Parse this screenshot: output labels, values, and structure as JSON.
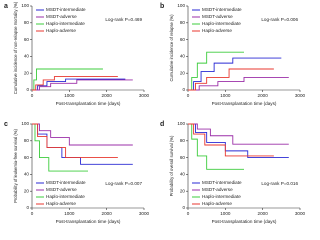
{
  "chart_data": [
    {
      "type": "step",
      "panel": "a",
      "ylabel": "Cumulative incidence of non-relapse mortality (%)",
      "xlabel": "Post-transplantation time (days)",
      "annotation": "Log-rank P=0.469",
      "legend": "upper left",
      "xlim": [
        0,
        3000
      ],
      "xticks": [
        0,
        1000,
        2000,
        3000
      ],
      "ylim": [
        0,
        100
      ],
      "yticks": [
        0,
        20,
        40,
        60,
        80,
        100
      ],
      "series": [
        {
          "name": "MSDT-intermediate",
          "color": "#2a2ad4",
          "x": [
            0,
            150,
            400,
            900,
            2500
          ],
          "values": [
            0,
            5,
            10,
            13,
            13
          ]
        },
        {
          "name": "MSDT-adverse",
          "color": "#9b2fa8",
          "x": [
            0,
            200,
            500,
            1200,
            2700
          ],
          "values": [
            0,
            4,
            8,
            12,
            12
          ]
        },
        {
          "name": "Haplo-intermediate",
          "color": "#3ccc3c",
          "x": [
            0,
            50,
            120,
            1900
          ],
          "values": [
            0,
            12,
            25,
            25
          ]
        },
        {
          "name": "Haplo-adverse",
          "color": "#e8372f",
          "x": [
            0,
            100,
            300,
            600,
            2300
          ],
          "values": [
            0,
            6,
            12,
            16,
            16
          ]
        }
      ]
    },
    {
      "type": "step",
      "panel": "b",
      "ylabel": "Cumulative incidence of relapse (%)",
      "xlabel": "Post-transplantation time (days)",
      "annotation": "Log-rank P=0.006",
      "legend": "upper left",
      "xlim": [
        0,
        3000
      ],
      "xticks": [
        0,
        1000,
        2000,
        3000
      ],
      "ylim": [
        0,
        100
      ],
      "yticks": [
        0,
        20,
        40,
        60,
        80,
        100
      ],
      "series": [
        {
          "name": "MSDT-intermediate",
          "color": "#2a2ad4",
          "x": [
            0,
            150,
            350,
            700,
            1200,
            2500
          ],
          "values": [
            0,
            10,
            22,
            32,
            38,
            38
          ]
        },
        {
          "name": "MSDT-adverse",
          "color": "#9b2fa8",
          "x": [
            0,
            300,
            800,
            1500,
            2700
          ],
          "values": [
            0,
            5,
            10,
            15,
            15
          ]
        },
        {
          "name": "Haplo-intermediate",
          "color": "#3ccc3c",
          "x": [
            0,
            100,
            250,
            500,
            1500
          ],
          "values": [
            0,
            15,
            32,
            45,
            45
          ]
        },
        {
          "name": "Haplo-adverse",
          "color": "#e8372f",
          "x": [
            0,
            200,
            500,
            1100,
            2300
          ],
          "values": [
            0,
            8,
            15,
            25,
            25
          ]
        }
      ]
    },
    {
      "type": "step",
      "panel": "c",
      "ylabel": "Probability of leukemia-free survival (%)",
      "xlabel": "Post-transplantation time (days)",
      "annotation": "Log-rank P=0.007",
      "legend": "lower left",
      "xlim": [
        0,
        3000
      ],
      "xticks": [
        0,
        1000,
        2000,
        3000
      ],
      "ylim": [
        0,
        100
      ],
      "yticks": [
        0,
        20,
        40,
        60,
        80,
        100
      ],
      "series": [
        {
          "name": "MSDT-intermediate",
          "color": "#2a2ad4",
          "x": [
            0,
            150,
            400,
            800,
            1300,
            2700
          ],
          "values": [
            100,
            88,
            72,
            60,
            52,
            52
          ]
        },
        {
          "name": "MSDT-adverse",
          "color": "#9b2fa8",
          "x": [
            0,
            200,
            500,
            1000,
            2700
          ],
          "values": [
            100,
            92,
            84,
            75,
            75
          ]
        },
        {
          "name": "Haplo-intermediate",
          "color": "#3ccc3c",
          "x": [
            0,
            80,
            200,
            450,
            1500
          ],
          "values": [
            100,
            80,
            60,
            44,
            44
          ]
        },
        {
          "name": "Haplo-adverse",
          "color": "#e8372f",
          "x": [
            0,
            150,
            400,
            900,
            2300
          ],
          "values": [
            100,
            85,
            72,
            60,
            60
          ]
        }
      ]
    },
    {
      "type": "step",
      "panel": "d",
      "ylabel": "Probability of overall survival (%)",
      "xlabel": "Post-transplantation time (days)",
      "annotation": "Log-rank P=0.016",
      "legend": "lower left",
      "xlim": [
        0,
        3000
      ],
      "xticks": [
        0,
        1000,
        2000,
        3000
      ],
      "ylim": [
        0,
        100
      ],
      "yticks": [
        0,
        20,
        40,
        60,
        80,
        100
      ],
      "series": [
        {
          "name": "MSDT-intermediate",
          "color": "#2a2ad4",
          "x": [
            0,
            200,
            500,
            1000,
            1600,
            2700
          ],
          "values": [
            100,
            90,
            78,
            68,
            60,
            60
          ]
        },
        {
          "name": "MSDT-adverse",
          "color": "#9b2fa8",
          "x": [
            0,
            250,
            600,
            1200,
            2700
          ],
          "values": [
            100,
            94,
            86,
            76,
            76
          ]
        },
        {
          "name": "Haplo-intermediate",
          "color": "#3ccc3c",
          "x": [
            0,
            100,
            250,
            500,
            1500
          ],
          "values": [
            100,
            82,
            62,
            46,
            46
          ]
        },
        {
          "name": "Haplo-adverse",
          "color": "#e8372f",
          "x": [
            0,
            150,
            450,
            1000,
            2300
          ],
          "values": [
            100,
            88,
            75,
            62,
            62
          ]
        }
      ]
    }
  ]
}
